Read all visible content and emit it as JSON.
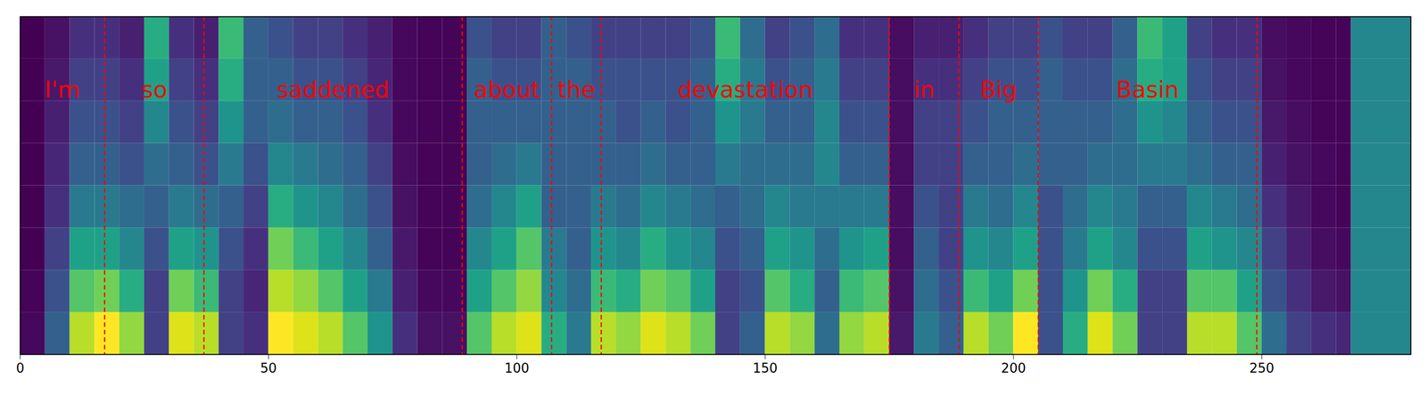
{
  "chart_data": {
    "type": "heatmap",
    "color": "viridis",
    "xlim": [
      0,
      280
    ],
    "xticks": [
      0,
      50,
      100,
      150,
      200,
      250
    ],
    "tick_labels": "x",
    "time_bins": [
      0,
      5,
      10,
      15,
      20,
      25,
      30,
      35,
      40,
      45,
      50,
      55,
      60,
      65,
      70,
      75,
      80,
      85,
      90,
      95,
      100,
      105,
      110,
      115,
      120,
      125,
      130,
      135,
      140,
      145,
      150,
      155,
      160,
      165,
      170,
      175,
      180,
      185,
      190,
      195,
      200,
      205,
      210,
      215,
      220,
      225,
      230,
      235,
      240,
      245,
      250,
      255,
      260,
      265,
      268,
      280
    ],
    "cells": [
      [
        0.04,
        0.03,
        0.02,
        0.02,
        0.02,
        0.02,
        0.02,
        0.02
      ],
      [
        0.3,
        0.25,
        0.2,
        0.15,
        0.12,
        0.1,
        0.08,
        0.06
      ],
      [
        0.85,
        0.7,
        0.55,
        0.4,
        0.3,
        0.25,
        0.2,
        0.15
      ],
      [
        0.95,
        0.75,
        0.55,
        0.4,
        0.3,
        0.25,
        0.2,
        0.15
      ],
      [
        0.8,
        0.6,
        0.45,
        0.35,
        0.25,
        0.2,
        0.15,
        0.1
      ],
      [
        0.2,
        0.2,
        0.25,
        0.3,
        0.35,
        0.45,
        0.55,
        0.6
      ],
      [
        0.9,
        0.75,
        0.55,
        0.4,
        0.3,
        0.25,
        0.2,
        0.15
      ],
      [
        0.85,
        0.65,
        0.5,
        0.35,
        0.25,
        0.2,
        0.15,
        0.1
      ],
      [
        0.2,
        0.2,
        0.25,
        0.3,
        0.4,
        0.5,
        0.6,
        0.65
      ],
      [
        0.15,
        0.12,
        0.15,
        0.2,
        0.25,
        0.3,
        0.3,
        0.3
      ],
      [
        0.95,
        0.85,
        0.75,
        0.6,
        0.45,
        0.35,
        0.3,
        0.25
      ],
      [
        0.9,
        0.8,
        0.65,
        0.5,
        0.4,
        0.3,
        0.25,
        0.2
      ],
      [
        0.85,
        0.7,
        0.55,
        0.45,
        0.35,
        0.3,
        0.25,
        0.2
      ],
      [
        0.7,
        0.55,
        0.45,
        0.35,
        0.3,
        0.25,
        0.2,
        0.15
      ],
      [
        0.5,
        0.4,
        0.3,
        0.25,
        0.2,
        0.15,
        0.12,
        0.1
      ],
      [
        0.15,
        0.1,
        0.08,
        0.06,
        0.05,
        0.04,
        0.04,
        0.04
      ],
      [
        0.06,
        0.04,
        0.03,
        0.03,
        0.03,
        0.03,
        0.03,
        0.03
      ],
      [
        0.06,
        0.04,
        0.03,
        0.03,
        0.03,
        0.03,
        0.03,
        0.03
      ],
      [
        0.7,
        0.55,
        0.45,
        0.35,
        0.3,
        0.3,
        0.3,
        0.25
      ],
      [
        0.85,
        0.7,
        0.55,
        0.45,
        0.35,
        0.3,
        0.25,
        0.2
      ],
      [
        0.9,
        0.8,
        0.7,
        0.55,
        0.4,
        0.3,
        0.25,
        0.2
      ],
      [
        0.6,
        0.45,
        0.4,
        0.3,
        0.3,
        0.3,
        0.3,
        0.3
      ],
      [
        0.4,
        0.35,
        0.3,
        0.3,
        0.3,
        0.3,
        0.3,
        0.25
      ],
      [
        0.85,
        0.65,
        0.5,
        0.4,
        0.3,
        0.3,
        0.25,
        0.2
      ],
      [
        0.8,
        0.6,
        0.45,
        0.35,
        0.3,
        0.25,
        0.25,
        0.2
      ],
      [
        0.9,
        0.75,
        0.6,
        0.45,
        0.35,
        0.3,
        0.25,
        0.2
      ],
      [
        0.85,
        0.7,
        0.5,
        0.4,
        0.3,
        0.25,
        0.25,
        0.2
      ],
      [
        0.75,
        0.55,
        0.45,
        0.35,
        0.3,
        0.3,
        0.3,
        0.25
      ],
      [
        0.2,
        0.2,
        0.25,
        0.3,
        0.4,
        0.5,
        0.6,
        0.65
      ],
      [
        0.3,
        0.25,
        0.3,
        0.35,
        0.35,
        0.4,
        0.4,
        0.35
      ],
      [
        0.85,
        0.7,
        0.55,
        0.45,
        0.35,
        0.3,
        0.25,
        0.2
      ],
      [
        0.8,
        0.6,
        0.5,
        0.4,
        0.35,
        0.3,
        0.3,
        0.25
      ],
      [
        0.35,
        0.3,
        0.35,
        0.4,
        0.45,
        0.45,
        0.4,
        0.35
      ],
      [
        0.8,
        0.65,
        0.5,
        0.4,
        0.3,
        0.25,
        0.2,
        0.15
      ],
      [
        0.85,
        0.7,
        0.55,
        0.4,
        0.3,
        0.25,
        0.2,
        0.15
      ],
      [
        0.08,
        0.06,
        0.05,
        0.05,
        0.05,
        0.05,
        0.05,
        0.05
      ],
      [
        0.4,
        0.35,
        0.3,
        0.25,
        0.2,
        0.2,
        0.15,
        0.1
      ],
      [
        0.3,
        0.25,
        0.2,
        0.2,
        0.2,
        0.2,
        0.15,
        0.1
      ],
      [
        0.85,
        0.65,
        0.5,
        0.4,
        0.3,
        0.25,
        0.2,
        0.15
      ],
      [
        0.75,
        0.55,
        0.45,
        0.35,
        0.3,
        0.3,
        0.25,
        0.2
      ],
      [
        0.95,
        0.75,
        0.55,
        0.45,
        0.35,
        0.3,
        0.25,
        0.2
      ],
      [
        0.25,
        0.25,
        0.25,
        0.25,
        0.3,
        0.3,
        0.3,
        0.25
      ],
      [
        0.6,
        0.5,
        0.4,
        0.35,
        0.3,
        0.3,
        0.25,
        0.2
      ],
      [
        0.9,
        0.75,
        0.55,
        0.45,
        0.35,
        0.3,
        0.25,
        0.2
      ],
      [
        0.75,
        0.6,
        0.45,
        0.4,
        0.35,
        0.35,
        0.35,
        0.3
      ],
      [
        0.2,
        0.2,
        0.25,
        0.3,
        0.4,
        0.5,
        0.6,
        0.65
      ],
      [
        0.2,
        0.2,
        0.25,
        0.3,
        0.4,
        0.45,
        0.55,
        0.55
      ],
      [
        0.85,
        0.7,
        0.55,
        0.45,
        0.35,
        0.3,
        0.25,
        0.2
      ],
      [
        0.85,
        0.7,
        0.5,
        0.4,
        0.3,
        0.25,
        0.2,
        0.15
      ],
      [
        0.7,
        0.55,
        0.45,
        0.35,
        0.3,
        0.25,
        0.2,
        0.15
      ],
      [
        0.35,
        0.25,
        0.2,
        0.15,
        0.1,
        0.08,
        0.06,
        0.05
      ],
      [
        0.2,
        0.15,
        0.1,
        0.08,
        0.06,
        0.05,
        0.04,
        0.04
      ],
      [
        0.15,
        0.08,
        0.05,
        0.04,
        0.04,
        0.03,
        0.03,
        0.03
      ],
      [
        0.12,
        0.06,
        0.04,
        0.03,
        0.03,
        0.03,
        0.03,
        0.03
      ],
      [
        0.45,
        0.45,
        0.45,
        0.45,
        0.45,
        0.45,
        0.45,
        0.45
      ]
    ],
    "words": [
      {
        "text": "I'm",
        "start": 0,
        "end": 17
      },
      {
        "text": "so",
        "start": 17,
        "end": 37
      },
      {
        "text": "saddened",
        "start": 37,
        "end": 89
      },
      {
        "text": "about",
        "start": 89,
        "end": 107
      },
      {
        "text": "the",
        "start": 107,
        "end": 117
      },
      {
        "text": "devastation",
        "start": 117,
        "end": 175
      },
      {
        "text": "in",
        "start": 175,
        "end": 189
      },
      {
        "text": "Big",
        "start": 189,
        "end": 205
      },
      {
        "text": "Basin",
        "start": 205,
        "end": 249
      }
    ]
  }
}
